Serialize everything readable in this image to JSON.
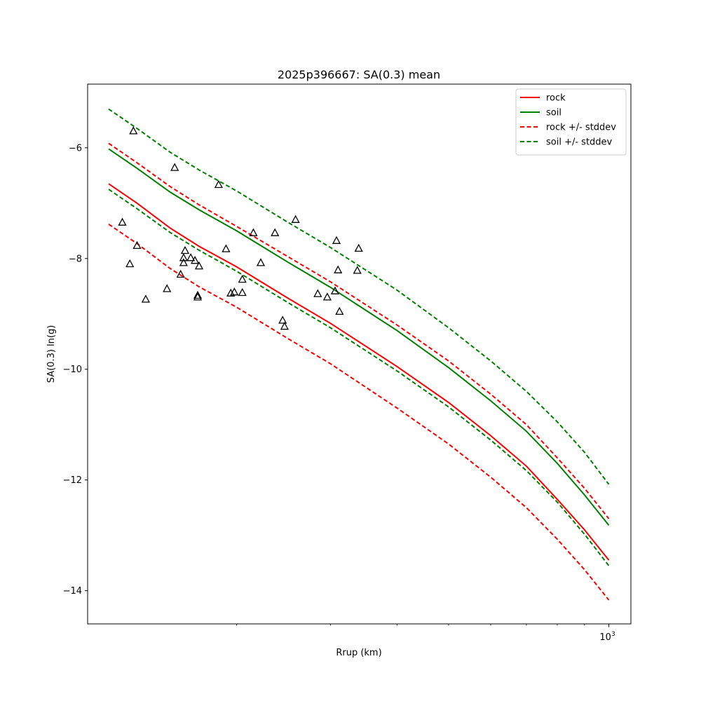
{
  "chart_data": {
    "type": "line",
    "title": "2025p396667: SA(0.3) mean",
    "xlabel": "Rrup (km)",
    "ylabel": "SA(0.3) ln(g)",
    "x_scale": "log",
    "xlim": [
      105,
      1100
    ],
    "ylim": [
      -14.6,
      -4.85
    ],
    "x_ticks": [
      {
        "value": 1000,
        "base": "10",
        "exp": "3"
      }
    ],
    "y_ticks": [
      -6,
      -8,
      -10,
      -12,
      -14
    ],
    "legend_position": "top-right",
    "grid": false,
    "series": [
      {
        "name": "rock",
        "style": "solid",
        "color": "#ff0000",
        "x": [
          115,
          130,
          150,
          170,
          200,
          250,
          300,
          400,
          500,
          600,
          700,
          800,
          900,
          1000
        ],
        "y": [
          -6.65,
          -7.0,
          -7.45,
          -7.78,
          -8.15,
          -8.72,
          -9.17,
          -9.95,
          -10.6,
          -11.2,
          -11.75,
          -12.35,
          -12.9,
          -13.45
        ]
      },
      {
        "name": "soil",
        "style": "solid",
        "color": "#008000",
        "x": [
          115,
          130,
          150,
          170,
          200,
          250,
          300,
          400,
          500,
          600,
          700,
          800,
          900,
          1000
        ],
        "y": [
          -6.02,
          -6.37,
          -6.8,
          -7.12,
          -7.5,
          -8.07,
          -8.52,
          -9.3,
          -9.97,
          -10.57,
          -11.12,
          -11.7,
          -12.27,
          -12.82
        ]
      },
      {
        "name": "rock +/- stddev",
        "style": "dashed",
        "color": "#ff0000",
        "x": [
          115,
          130,
          150,
          170,
          200,
          250,
          300,
          400,
          500,
          600,
          700,
          800,
          900,
          1000
        ],
        "y": [
          -5.92,
          -6.27,
          -6.7,
          -7.03,
          -7.42,
          -7.97,
          -8.42,
          -9.2,
          -9.85,
          -10.45,
          -11.0,
          -11.6,
          -12.15,
          -12.7
        ]
      },
      {
        "name": "",
        "style": "dashed",
        "color": "#ff0000",
        "x": [
          115,
          130,
          150,
          170,
          200,
          250,
          300,
          400,
          500,
          600,
          700,
          800,
          900,
          1000
        ],
        "y": [
          -7.38,
          -7.73,
          -8.18,
          -8.51,
          -8.88,
          -9.45,
          -9.9,
          -10.7,
          -11.35,
          -11.95,
          -12.5,
          -13.07,
          -13.62,
          -14.17
        ]
      },
      {
        "name": "soil +/- stddev",
        "style": "dashed",
        "color": "#008000",
        "x": [
          115,
          130,
          150,
          170,
          200,
          250,
          300,
          400,
          500,
          600,
          700,
          800,
          900,
          1000
        ],
        "y": [
          -5.3,
          -5.65,
          -6.08,
          -6.4,
          -6.78,
          -7.35,
          -7.8,
          -8.57,
          -9.25,
          -9.85,
          -10.4,
          -10.95,
          -11.5,
          -12.08
        ]
      },
      {
        "name": "",
        "style": "dashed",
        "color": "#008000",
        "x": [
          115,
          130,
          150,
          170,
          200,
          250,
          300,
          400,
          500,
          600,
          700,
          800,
          900,
          1000
        ],
        "y": [
          -6.75,
          -7.1,
          -7.53,
          -7.85,
          -8.23,
          -8.8,
          -9.25,
          -10.03,
          -10.68,
          -11.28,
          -11.83,
          -12.4,
          -12.98,
          -13.55
        ]
      }
    ],
    "observations": {
      "marker": "triangle",
      "points": [
        {
          "x": 122,
          "y": -7.35
        },
        {
          "x": 128,
          "y": -5.7
        },
        {
          "x": 126,
          "y": -8.1
        },
        {
          "x": 130,
          "y": -7.77
        },
        {
          "x": 135,
          "y": -8.74
        },
        {
          "x": 148,
          "y": -8.55
        },
        {
          "x": 153,
          "y": -6.36
        },
        {
          "x": 157,
          "y": -8.29
        },
        {
          "x": 159,
          "y": -8.08
        },
        {
          "x": 159,
          "y": -7.99
        },
        {
          "x": 160,
          "y": -7.86
        },
        {
          "x": 164,
          "y": -7.99
        },
        {
          "x": 167,
          "y": -8.04
        },
        {
          "x": 169,
          "y": -8.7
        },
        {
          "x": 169,
          "y": -8.67
        },
        {
          "x": 170,
          "y": -8.14
        },
        {
          "x": 185,
          "y": -6.67
        },
        {
          "x": 191,
          "y": -7.83
        },
        {
          "x": 195,
          "y": -8.63
        },
        {
          "x": 198,
          "y": -8.61
        },
        {
          "x": 205,
          "y": -8.38
        },
        {
          "x": 205,
          "y": -8.62
        },
        {
          "x": 215,
          "y": -7.54
        },
        {
          "x": 222,
          "y": -8.08
        },
        {
          "x": 236,
          "y": -7.54
        },
        {
          "x": 244,
          "y": -9.12
        },
        {
          "x": 246,
          "y": -9.23
        },
        {
          "x": 258,
          "y": -7.3
        },
        {
          "x": 284,
          "y": -8.64
        },
        {
          "x": 296,
          "y": -8.7
        },
        {
          "x": 306,
          "y": -8.59
        },
        {
          "x": 308,
          "y": -7.68
        },
        {
          "x": 310,
          "y": -8.21
        },
        {
          "x": 312,
          "y": -8.96
        },
        {
          "x": 337,
          "y": -8.22
        },
        {
          "x": 339,
          "y": -7.82
        }
      ]
    }
  }
}
